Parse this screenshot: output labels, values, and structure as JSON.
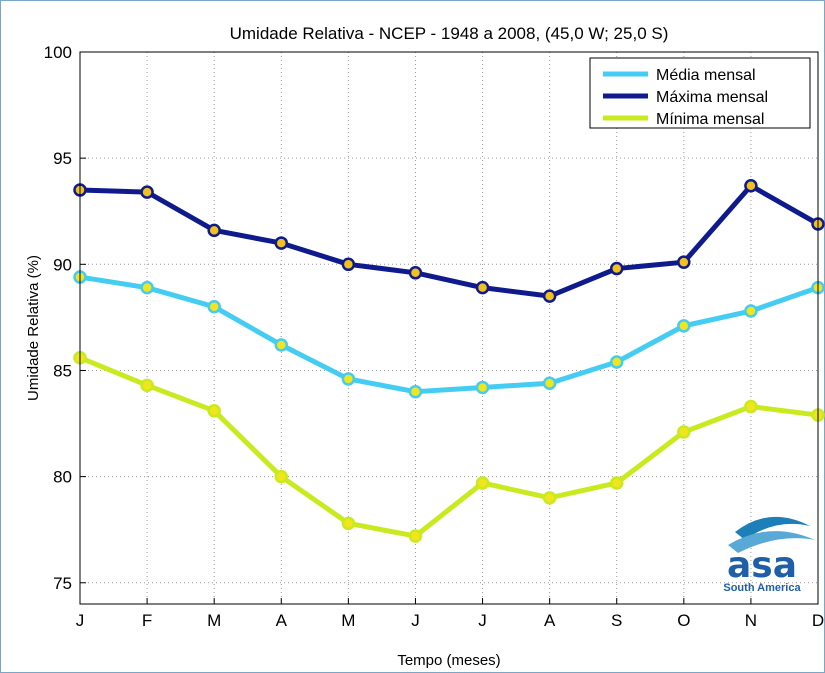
{
  "chart_data": {
    "type": "line",
    "title": "Umidade Relativa - NCEP - 1948 a 2008, (45,0 W; 25,0 S)",
    "xlabel": "Tempo (meses)",
    "ylabel": "Umidade Relativa (%)",
    "categories": [
      "J",
      "F",
      "M",
      "A",
      "M",
      "J",
      "J",
      "A",
      "S",
      "O",
      "N",
      "D"
    ],
    "yticks": [
      "75",
      "80",
      "85",
      "90",
      "95",
      "100"
    ],
    "ytick_values": [
      75,
      80,
      85,
      90,
      95,
      100
    ],
    "ylim": [
      74,
      100
    ],
    "grid": true,
    "legend_position": "top-right",
    "series": [
      {
        "name": "Média mensal",
        "color": "#44ccf2",
        "marker_fill": "#f2e51c",
        "values": [
          89.4,
          88.9,
          88.0,
          86.2,
          84.6,
          84.0,
          84.2,
          84.4,
          85.4,
          87.1,
          87.8,
          88.9
        ]
      },
      {
        "name": "Máxima mensal",
        "color": "#0f1b8c",
        "marker_fill": "#f2c21c",
        "values": [
          93.5,
          93.4,
          91.6,
          91.0,
          90.0,
          89.6,
          88.9,
          88.5,
          89.8,
          90.1,
          93.7,
          91.9
        ]
      },
      {
        "name": "Mínima mensal",
        "color": "#c9ea1e",
        "marker_fill": "#f2e51c",
        "values": [
          85.6,
          84.3,
          83.1,
          80.0,
          77.8,
          77.2,
          79.7,
          79.0,
          79.7,
          82.1,
          83.3,
          82.9
        ]
      }
    ]
  },
  "logo": {
    "word": "asa",
    "tagline": "South America"
  }
}
